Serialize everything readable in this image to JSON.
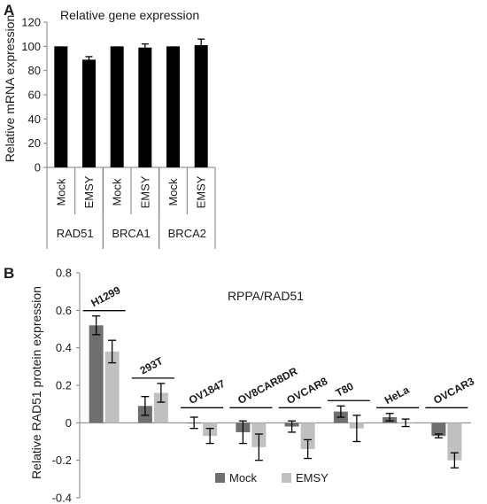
{
  "colors": {
    "bar_a": "#000000",
    "mock": "#6f6f6f",
    "emsy": "#c0c0c0",
    "axis": "#7f7f7f",
    "text": "#1a1a1a"
  },
  "chart_data": [
    {
      "panel_label": "A",
      "type": "bar",
      "title": "Relative gene expression",
      "ylabel": "Relative mRNA expression",
      "ylim": [
        0,
        120
      ],
      "yticks": [
        0,
        20,
        40,
        60,
        80,
        100,
        120
      ],
      "grid": false,
      "groups": [
        {
          "name": "RAD51",
          "categories": [
            "Mock",
            "EMSY"
          ],
          "values": [
            100,
            89
          ],
          "errors": [
            0,
            2.5
          ]
        },
        {
          "name": "BRCA1",
          "categories": [
            "Mock",
            "EMSY"
          ],
          "values": [
            100,
            99
          ],
          "errors": [
            0,
            3
          ]
        },
        {
          "name": "BRCA2",
          "categories": [
            "Mock",
            "EMSY"
          ],
          "values": [
            100,
            101
          ],
          "errors": [
            0,
            5
          ]
        }
      ]
    },
    {
      "panel_label": "B",
      "type": "bar",
      "title": "RPPA/RAD51",
      "ylabel": "Relative RAD51 protein expression",
      "ylim": [
        -0.4,
        0.8
      ],
      "yticks": [
        "-0.4",
        "-0.2",
        "0",
        "0.2",
        "0.4",
        "0.6",
        "0.8"
      ],
      "grid": false,
      "legend_position": "bottom",
      "categories": [
        "H1299",
        "293T",
        "OV1847",
        "OV8CAR8DR",
        "OVCAR8",
        "T80",
        "HeLa",
        "OVCAR3"
      ],
      "series": [
        {
          "name": "Mock",
          "values": [
            0.52,
            0.09,
            0.0,
            -0.05,
            -0.02,
            0.06,
            0.03,
            -0.07
          ],
          "errors": [
            0.05,
            0.05,
            0.03,
            0.06,
            0.03,
            0.03,
            0.02,
            0.01
          ]
        },
        {
          "name": "EMSY",
          "values": [
            0.38,
            0.16,
            -0.07,
            -0.13,
            -0.14,
            -0.03,
            0.0,
            -0.2
          ],
          "errors": [
            0.06,
            0.05,
            0.04,
            0.07,
            0.05,
            0.07,
            0.02,
            0.04
          ]
        }
      ]
    }
  ]
}
